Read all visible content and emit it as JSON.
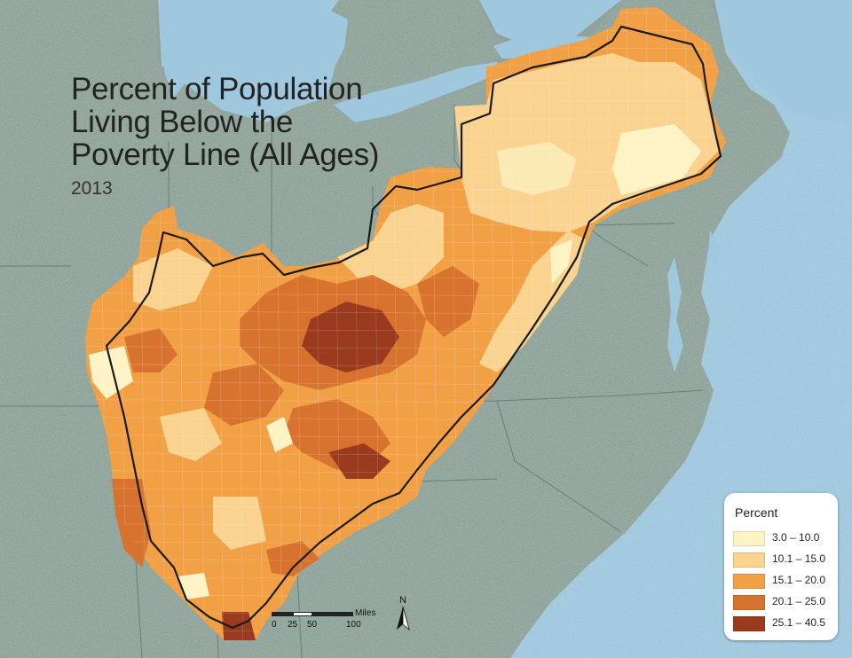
{
  "title": {
    "lines": [
      "Percent of Population",
      "Living Below the",
      "Poverty Line (All Ages)"
    ],
    "year": "2013"
  },
  "legend": {
    "title": "Percent",
    "classes": [
      {
        "label": "3.0 – 10.0",
        "color": "#fdf3c4"
      },
      {
        "label": "10.1 – 15.0",
        "color": "#f9d38f"
      },
      {
        "label": "15.1 – 20.0",
        "color": "#f2a046"
      },
      {
        "label": "20.1 – 25.0",
        "color": "#d8732f"
      },
      {
        "label": "25.1 – 40.5",
        "color": "#9a3a1f"
      }
    ]
  },
  "scale": {
    "unit": "Miles",
    "ticks": [
      "0",
      "25",
      "50",
      "100"
    ]
  },
  "north_arrow": {
    "label": "N"
  },
  "colors": {
    "water": "#9fc7dd",
    "land": "#8fa39a",
    "boundary": "#1a1a1a"
  }
}
